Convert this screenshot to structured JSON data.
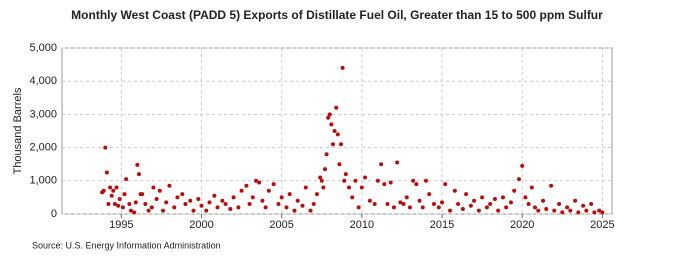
{
  "chart_data": {
    "type": "scatter",
    "title": "Monthly West Coast (PADD 5) Exports of Distillate Fuel Oil, Greater than 15 to 500 ppm Sulfur",
    "y_label": "Thousand Barrels",
    "source": "Source: U.S. Energy Information Administration",
    "color": "#b50f0f",
    "grid": true,
    "xlim": [
      1991.3,
      2025.6
    ],
    "ylim": [
      0,
      5000
    ],
    "xticks": [
      1995,
      2000,
      2005,
      2010,
      2015,
      2020,
      2025
    ],
    "yticks": [
      0,
      {
        "value": 1000,
        "label": "1,000"
      },
      {
        "value": 2000,
        "label": "2,000"
      },
      {
        "value": 3000,
        "label": "3,000"
      },
      {
        "value": 4000,
        "label": "4,000"
      },
      {
        "value": 5000,
        "label": "5,000"
      }
    ],
    "x": [
      1993.8,
      1993.9,
      1994.0,
      1994.1,
      1994.2,
      1994.3,
      1994.4,
      1994.5,
      1994.6,
      1994.7,
      1994.8,
      1994.9,
      1995.1,
      1995.2,
      1995.3,
      1995.5,
      1995.6,
      1995.8,
      1995.9,
      1996.0,
      1996.1,
      1996.2,
      1996.3,
      1996.5,
      1996.7,
      1996.9,
      1997.0,
      1997.2,
      1997.4,
      1997.6,
      1997.8,
      1998.0,
      1998.3,
      1998.5,
      1998.8,
      1999.0,
      1999.3,
      1999.5,
      1999.8,
      2000.0,
      2000.3,
      2000.5,
      2000.8,
      2001.0,
      2001.3,
      2001.5,
      2001.8,
      2002.0,
      2002.3,
      2002.5,
      2002.8,
      2003.0,
      2003.2,
      2003.4,
      2003.6,
      2003.8,
      2004.0,
      2004.2,
      2004.5,
      2004.8,
      2005.0,
      2005.3,
      2005.5,
      2005.8,
      2006.0,
      2006.3,
      2006.5,
      2006.8,
      2007.0,
      2007.2,
      2007.4,
      2007.5,
      2007.6,
      2007.7,
      2007.8,
      2007.9,
      2008.0,
      2008.1,
      2008.2,
      2008.3,
      2008.4,
      2008.5,
      2008.6,
      2008.7,
      2008.8,
      2008.9,
      2009.0,
      2009.2,
      2009.4,
      2009.6,
      2009.8,
      2010.0,
      2010.2,
      2010.5,
      2010.8,
      2011.0,
      2011.2,
      2011.4,
      2011.6,
      2011.8,
      2012.0,
      2012.2,
      2012.4,
      2012.6,
      2012.8,
      2013.0,
      2013.2,
      2013.4,
      2013.6,
      2013.8,
      2014.0,
      2014.2,
      2014.5,
      2014.8,
      2015.0,
      2015.2,
      2015.5,
      2015.8,
      2016.0,
      2016.3,
      2016.5,
      2016.8,
      2017.0,
      2017.3,
      2017.5,
      2017.8,
      2018.0,
      2018.3,
      2018.5,
      2018.8,
      2019.0,
      2019.3,
      2019.5,
      2019.8,
      2020.0,
      2020.2,
      2020.4,
      2020.6,
      2020.8,
      2021.0,
      2021.3,
      2021.5,
      2021.8,
      2022.0,
      2022.3,
      2022.5,
      2022.8,
      2023.0,
      2023.3,
      2023.5,
      2023.8,
      2024.0,
      2024.3,
      2024.5,
      2024.8,
      2025.0
    ],
    "values": [
      650,
      700,
      2000,
      1250,
      300,
      800,
      550,
      700,
      300,
      800,
      250,
      450,
      200,
      600,
      1050,
      300,
      100,
      50,
      350,
      1480,
      1200,
      600,
      600,
      300,
      100,
      200,
      800,
      450,
      700,
      100,
      350,
      850,
      200,
      500,
      600,
      300,
      400,
      100,
      450,
      250,
      100,
      350,
      550,
      200,
      400,
      300,
      150,
      500,
      200,
      700,
      850,
      300,
      500,
      1000,
      950,
      400,
      200,
      700,
      900,
      300,
      500,
      200,
      600,
      100,
      400,
      250,
      800,
      100,
      300,
      600,
      1100,
      1000,
      800,
      1350,
      1800,
      2900,
      3000,
      2700,
      2100,
      2500,
      3200,
      2400,
      1500,
      2100,
      4400,
      1000,
      1200,
      800,
      500,
      1000,
      200,
      800,
      1100,
      400,
      300,
      1000,
      1500,
      900,
      300,
      950,
      200,
      1550,
      350,
      300,
      500,
      200,
      1000,
      900,
      400,
      200,
      1000,
      600,
      300,
      200,
      350,
      900,
      100,
      700,
      300,
      150,
      600,
      250,
      400,
      100,
      500,
      200,
      300,
      450,
      100,
      500,
      200,
      350,
      700,
      1050,
      1450,
      500,
      300,
      800,
      200,
      100,
      400,
      150,
      850,
      100,
      300,
      50,
      200,
      100,
      400,
      50,
      250,
      100,
      300,
      50,
      100,
      50
    ]
  }
}
